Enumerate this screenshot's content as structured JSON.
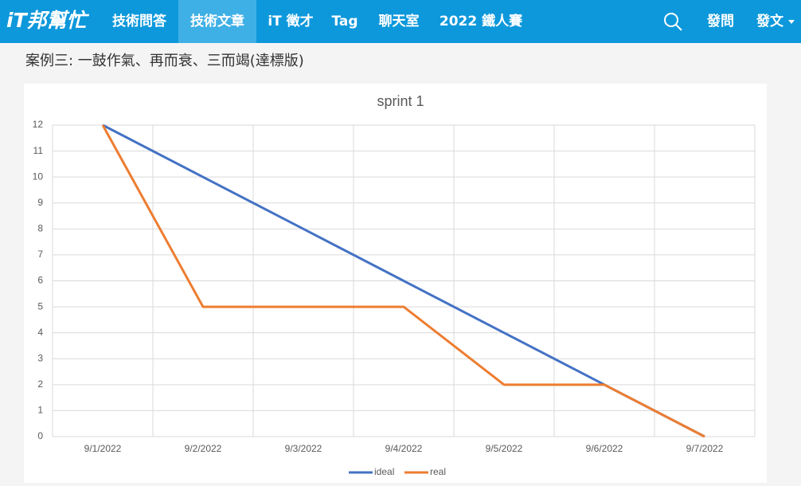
{
  "nav": {
    "logo": "iT邦幫忙",
    "items": [
      "技術問答",
      "技術文章",
      "iT 徵才",
      "Tag",
      "聊天室",
      "2022 鐵人賽"
    ],
    "actions": [
      "發問",
      "發文"
    ]
  },
  "heading": "案例三: 一鼓作氣、再而衰、三而竭(達標版)",
  "chart_data": {
    "type": "line",
    "title": "sprint 1",
    "categories": [
      "9/1/2022",
      "9/2/2022",
      "9/3/2022",
      "9/4/2022",
      "9/5/2022",
      "9/6/2022",
      "9/7/2022"
    ],
    "series": [
      {
        "name": "ideal",
        "color": "#4472c4",
        "values": [
          12,
          10,
          8,
          6,
          4,
          2,
          0
        ]
      },
      {
        "name": "real",
        "color": "#ed7d31",
        "values": [
          12,
          5,
          5,
          5,
          2,
          2,
          0
        ]
      }
    ],
    "ylim": [
      0,
      12
    ],
    "yticks": [
      0,
      1,
      2,
      3,
      4,
      5,
      6,
      7,
      8,
      9,
      10,
      11,
      12
    ],
    "grid": true,
    "legend": "bottom"
  }
}
